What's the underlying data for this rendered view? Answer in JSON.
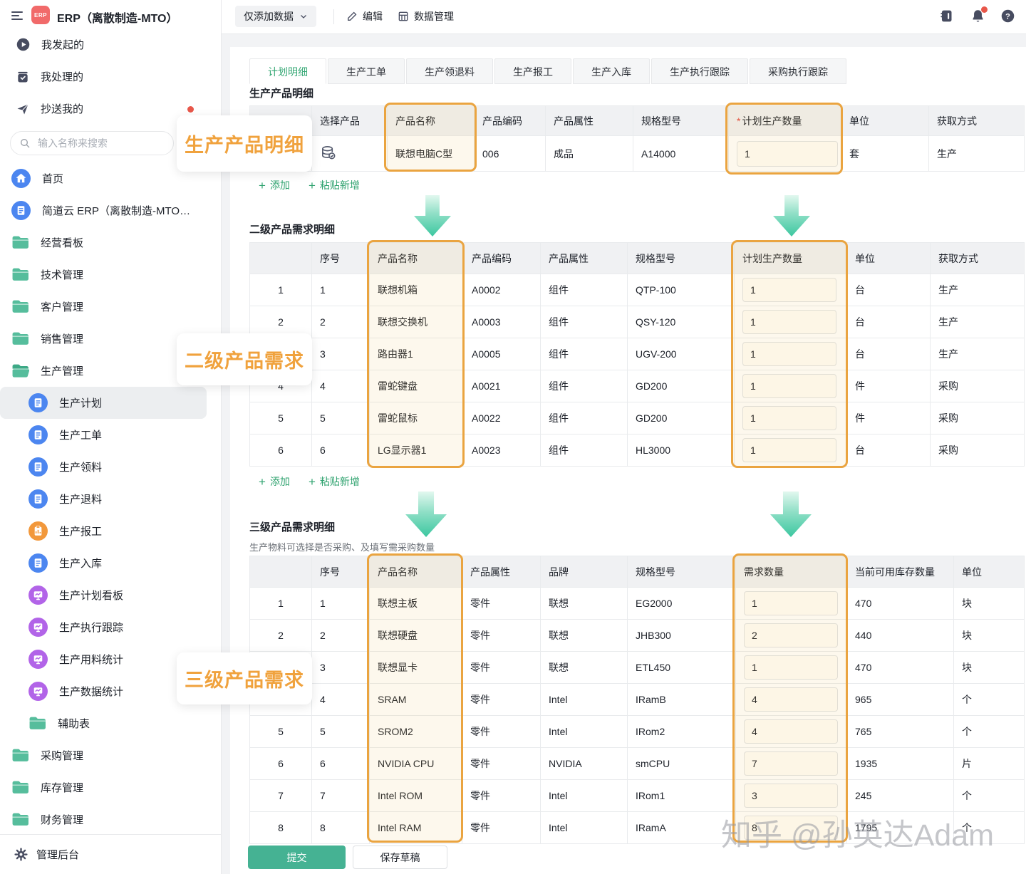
{
  "app": {
    "title": "ERP（离散制造-MTO）",
    "logo_text": "ERP"
  },
  "sidebar": {
    "search_placeholder": "输入名称来搜索",
    "quick": [
      {
        "label": "我发起的",
        "icon": "play"
      },
      {
        "label": "我处理的",
        "icon": "task"
      },
      {
        "label": "抄送我的",
        "icon": "send",
        "dot": true
      }
    ],
    "nav": [
      {
        "label": "首页",
        "icon": "home"
      },
      {
        "label": "简道云 ERP（离散制造-MTO）…",
        "icon": "form"
      },
      {
        "label": "经营看板",
        "icon": "folder"
      },
      {
        "label": "技术管理",
        "icon": "folder"
      },
      {
        "label": "客户管理",
        "icon": "folder"
      },
      {
        "label": "销售管理",
        "icon": "folder"
      },
      {
        "label": "生产管理",
        "icon": "folder-open"
      },
      {
        "label": "生产计划",
        "icon": "form",
        "indent": true,
        "active": true
      },
      {
        "label": "生产工单",
        "icon": "form",
        "indent": true
      },
      {
        "label": "生产领料",
        "icon": "form",
        "indent": true
      },
      {
        "label": "生产退料",
        "icon": "form",
        "indent": true
      },
      {
        "label": "生产报工",
        "icon": "report",
        "indent": true
      },
      {
        "label": "生产入库",
        "icon": "form",
        "indent": true
      },
      {
        "label": "生产计划看板",
        "icon": "dashboard",
        "indent": true
      },
      {
        "label": "生产执行跟踪",
        "icon": "dashboard",
        "indent": true
      },
      {
        "label": "生产用料统计",
        "icon": "dashboard",
        "indent": true
      },
      {
        "label": "生产数据统计",
        "icon": "dashboard",
        "indent": true
      },
      {
        "label": "辅助表",
        "icon": "folder",
        "indent": true
      },
      {
        "label": "采购管理",
        "icon": "folder"
      },
      {
        "label": "库存管理",
        "icon": "folder"
      },
      {
        "label": "财务管理",
        "icon": "folder"
      }
    ],
    "footer_label": "管理后台"
  },
  "toolbar": {
    "mode_label": "仅添加数据",
    "edit_label": "编辑",
    "data_label": "数据管理"
  },
  "tabs": {
    "active_index": 0,
    "items": [
      "计划明细",
      "生产工单",
      "生产领退料",
      "生产报工",
      "生产入库",
      "生产执行跟踪",
      "采购执行跟踪"
    ]
  },
  "sections": {
    "s1_title": "生产产品明细",
    "s2_title": "二级产品需求明细",
    "s3_title": "三级产品需求明细",
    "s3_subtitle": "生产物料可选择是否采购、及填写需采购数量"
  },
  "tables": {
    "t1": {
      "columns": [
        {
          "label": ""
        },
        {
          "label": "选择产品",
          "type": "icon"
        },
        {
          "label": "产品名称"
        },
        {
          "label": "产品编码"
        },
        {
          "label": "产品属性"
        },
        {
          "label": "规格型号"
        },
        {
          "label": "计划生产数量",
          "type": "input",
          "required": true
        },
        {
          "label": "单位"
        },
        {
          "label": "获取方式"
        }
      ],
      "rows": [
        [
          "",
          "",
          "联想电脑C型",
          "006",
          "成品",
          "A14000",
          "1",
          "套",
          "生产"
        ]
      ]
    },
    "t2": {
      "columns": [
        {
          "label": ""
        },
        {
          "label": "序号"
        },
        {
          "label": "产品名称"
        },
        {
          "label": "产品编码"
        },
        {
          "label": "产品属性"
        },
        {
          "label": "规格型号"
        },
        {
          "label": "计划生产数量",
          "type": "input"
        },
        {
          "label": "单位"
        },
        {
          "label": "获取方式"
        }
      ],
      "rows": [
        [
          "1",
          "1",
          "联想机箱",
          "A0002",
          "组件",
          "QTP-100",
          "1",
          "台",
          "生产"
        ],
        [
          "2",
          "2",
          "联想交换机",
          "A0003",
          "组件",
          "QSY-120",
          "1",
          "台",
          "生产"
        ],
        [
          "3",
          "3",
          "路由器1",
          "A0005",
          "组件",
          "UGV-200",
          "1",
          "台",
          "生产"
        ],
        [
          "4",
          "4",
          "雷蛇键盘",
          "A0021",
          "组件",
          "GD200",
          "1",
          "件",
          "采购"
        ],
        [
          "5",
          "5",
          "雷蛇鼠标",
          "A0022",
          "组件",
          "GD200",
          "1",
          "件",
          "采购"
        ],
        [
          "6",
          "6",
          "LG显示器1",
          "A0023",
          "组件",
          "HL3000",
          "1",
          "台",
          "采购"
        ]
      ]
    },
    "t3": {
      "columns": [
        {
          "label": ""
        },
        {
          "label": "序号"
        },
        {
          "label": "产品名称"
        },
        {
          "label": "产品属性"
        },
        {
          "label": "品牌"
        },
        {
          "label": "规格型号"
        },
        {
          "label": "需求数量",
          "type": "input"
        },
        {
          "label": "当前可用库存数量"
        },
        {
          "label": "单位"
        }
      ],
      "rows": [
        [
          "1",
          "1",
          "联想主板",
          "零件",
          "联想",
          "EG2000",
          "1",
          "470",
          "块"
        ],
        [
          "2",
          "2",
          "联想硬盘",
          "零件",
          "联想",
          "JHB300",
          "2",
          "440",
          "块"
        ],
        [
          "3",
          "3",
          "联想显卡",
          "零件",
          "联想",
          "ETL450",
          "1",
          "470",
          "块"
        ],
        [
          "4",
          "4",
          "SRAM",
          "零件",
          "Intel",
          "IRamB",
          "4",
          "965",
          "个"
        ],
        [
          "5",
          "5",
          "SROM2",
          "零件",
          "Intel",
          "IRom2",
          "4",
          "765",
          "个"
        ],
        [
          "6",
          "6",
          "NVIDIA CPU",
          "零件",
          "NVIDIA",
          "smCPU",
          "7",
          "1935",
          "片"
        ],
        [
          "7",
          "7",
          "Intel ROM",
          "零件",
          "Intel",
          "IRom1",
          "3",
          "245",
          "个"
        ],
        [
          "8",
          "8",
          "Intel RAM",
          "零件",
          "Intel",
          "IRamA",
          "8",
          "1795",
          "个"
        ]
      ]
    }
  },
  "table_actions": {
    "add_label": "添加",
    "paste_label": "粘贴新增"
  },
  "footer": {
    "submit_label": "提交",
    "draft_label": "保存草稿"
  },
  "annotations": [
    "生产产品明细",
    "二级产品需求",
    "三级产品需求"
  ],
  "watermark": "知乎 @孙英达Adam",
  "colors": {
    "accent_green": "#45B293",
    "tab_active_green": "#36A875",
    "add_link_green": "#2EA26E",
    "highlight_orange": "#EAA440",
    "annotation_orange": "#F0A23D",
    "logo_red": "#F16A6A",
    "notification_red": "#E8574A",
    "folder_green": "#56BD9C",
    "icon_blue": "#4C86F0",
    "icon_purple": "#B264E8",
    "icon_orange": "#F2983B"
  }
}
